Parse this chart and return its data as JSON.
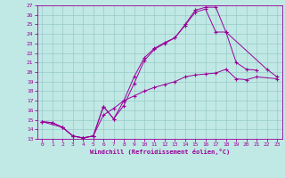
{
  "bg_color": "#c0e8e4",
  "line_color": "#990099",
  "grid_color": "#98ccc8",
  "xlabel": "Windchill (Refroidissement éolien,°C)",
  "xlim": [
    -0.5,
    23.5
  ],
  "ylim": [
    13,
    27
  ],
  "xticks": [
    0,
    1,
    2,
    3,
    4,
    5,
    6,
    7,
    8,
    9,
    10,
    11,
    12,
    13,
    14,
    15,
    16,
    17,
    18,
    19,
    20,
    21,
    22,
    23
  ],
  "yticks": [
    13,
    14,
    15,
    16,
    17,
    18,
    19,
    20,
    21,
    22,
    23,
    24,
    25,
    26,
    27
  ],
  "line1_x": [
    0,
    1,
    2,
    3,
    4,
    5,
    6,
    7,
    8,
    9,
    10,
    11,
    12,
    13,
    14,
    15,
    16,
    17,
    18,
    19,
    20,
    21
  ],
  "line1_y": [
    14.8,
    14.7,
    14.2,
    13.3,
    13.1,
    13.3,
    16.4,
    15.1,
    17.0,
    19.5,
    21.5,
    22.5,
    23.1,
    23.6,
    25.0,
    26.5,
    26.8,
    26.8,
    24.2,
    21.0,
    20.3,
    20.2
  ],
  "line2_x": [
    0,
    2,
    3,
    4,
    5,
    6,
    7,
    8,
    9,
    10,
    11,
    12,
    13,
    14,
    15,
    16,
    17,
    18,
    22,
    23
  ],
  "line2_y": [
    14.8,
    14.2,
    13.3,
    13.1,
    13.3,
    16.4,
    15.1,
    16.5,
    18.8,
    21.2,
    22.4,
    23.0,
    23.6,
    24.9,
    26.3,
    26.6,
    24.2,
    24.2,
    20.3,
    19.5
  ],
  "line3_x": [
    0,
    1,
    2,
    3,
    4,
    5,
    6,
    7,
    8,
    9,
    10,
    11,
    12,
    13,
    14,
    15,
    16,
    17,
    18,
    19,
    20,
    21,
    23
  ],
  "line3_y": [
    14.8,
    14.7,
    14.2,
    13.3,
    13.1,
    13.3,
    15.5,
    16.2,
    17.0,
    17.5,
    18.0,
    18.4,
    18.7,
    19.0,
    19.5,
    19.7,
    19.8,
    19.9,
    20.3,
    19.3,
    19.2,
    19.5,
    19.3
  ]
}
